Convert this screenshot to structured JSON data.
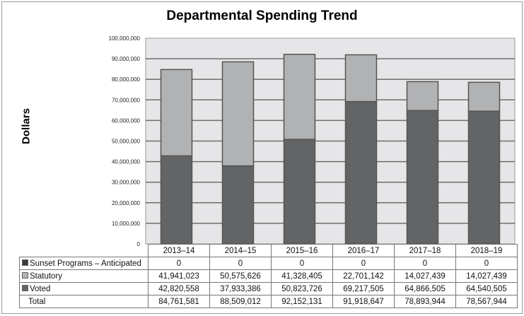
{
  "chart_data": {
    "type": "bar",
    "stacked": true,
    "title": "Departmental Spending Trend",
    "xlabel": "",
    "ylabel": "Dollars",
    "ylim": [
      0,
      100000000
    ],
    "yticks": [
      "0",
      "10,000,000",
      "20,000,000",
      "30,000,000",
      "40,000,000",
      "50,000,000",
      "60,000,000",
      "70,000,000",
      "80,000,000",
      "90,000,000",
      "100,000,000"
    ],
    "grid": true,
    "legend": "table-left",
    "categories": [
      "2013–14",
      "2014–15",
      "2015–16",
      "2016–17",
      "2017–18",
      "2018–19"
    ],
    "series": [
      {
        "name": "Sunset Programs – Anticipated",
        "color": "#3a3a3a",
        "values": [
          0,
          0,
          0,
          0,
          0,
          0
        ],
        "labels": [
          "0",
          "0",
          "0",
          "0",
          "0",
          "0"
        ]
      },
      {
        "name": "Statutory",
        "color": "#b1b2b4",
        "values": [
          41941023,
          50575626,
          41328405,
          22701142,
          14027439,
          14027439
        ],
        "labels": [
          "41,941,023",
          "50,575,626",
          "41,328,405",
          "22,701,142",
          "14,027,439",
          "14,027,439"
        ]
      },
      {
        "name": "Voted",
        "color": "#636466",
        "values": [
          42820558,
          37933386,
          50823726,
          69217505,
          64866505,
          64540505
        ],
        "labels": [
          "42,820,558",
          "37,933,386",
          "50,823,726",
          "69,217,505",
          "64,866,505",
          "64,540,505"
        ]
      }
    ],
    "total_label": "Total",
    "totals": [
      "84,761,581",
      "88,509,012",
      "92,152,131",
      "91,918,647",
      "78,893,944",
      "78,567,944"
    ]
  }
}
